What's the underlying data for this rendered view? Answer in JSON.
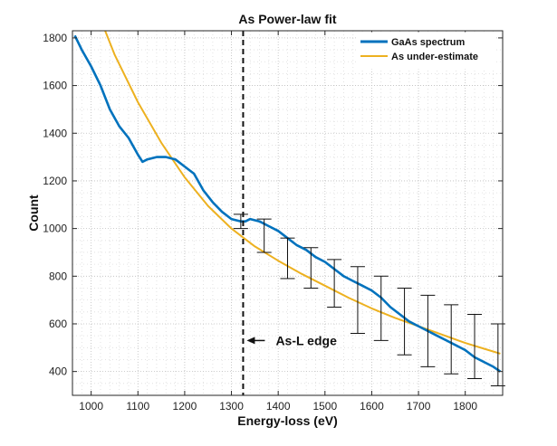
{
  "chart_data": {
    "type": "line",
    "title": "As Power-law fit",
    "xlabel": "Energy-loss (eV)",
    "ylabel": "Count",
    "xlim": [
      960,
      1880
    ],
    "ylim": [
      300,
      1830
    ],
    "xticks": [
      1000,
      1100,
      1200,
      1300,
      1400,
      1500,
      1600,
      1700,
      1800
    ],
    "yticks": [
      400,
      600,
      800,
      1000,
      1200,
      1400,
      1600,
      1800
    ],
    "grid": "dotted",
    "legend_position": "top-right",
    "series": [
      {
        "name": "GaAs spectrum",
        "color": "#0072BD",
        "x": [
          965,
          980,
          1000,
          1020,
          1040,
          1060,
          1080,
          1100,
          1110,
          1120,
          1140,
          1160,
          1180,
          1200,
          1220,
          1240,
          1260,
          1280,
          1300,
          1320,
          1330,
          1340,
          1360,
          1380,
          1400,
          1420,
          1440,
          1460,
          1480,
          1500,
          1520,
          1540,
          1560,
          1580,
          1600,
          1620,
          1640,
          1660,
          1680,
          1700,
          1720,
          1740,
          1760,
          1780,
          1800,
          1820,
          1840,
          1860,
          1875
        ],
        "y": [
          1810,
          1750,
          1680,
          1600,
          1500,
          1430,
          1380,
          1310,
          1280,
          1290,
          1300,
          1300,
          1290,
          1260,
          1230,
          1160,
          1110,
          1070,
          1040,
          1030,
          1030,
          1040,
          1030,
          1010,
          990,
          960,
          930,
          910,
          880,
          860,
          830,
          800,
          780,
          760,
          740,
          710,
          670,
          640,
          610,
          590,
          570,
          550,
          530,
          510,
          490,
          460,
          440,
          420,
          400
        ]
      },
      {
        "name": "As under-estimate",
        "color": "#EDB120",
        "x": [
          1030,
          1050,
          1100,
          1150,
          1200,
          1250,
          1300,
          1350,
          1400,
          1450,
          1500,
          1550,
          1600,
          1650,
          1700,
          1750,
          1800,
          1850,
          1875
        ],
        "y": [
          1830,
          1730,
          1530,
          1360,
          1215,
          1095,
          1000,
          925,
          865,
          810,
          760,
          710,
          665,
          625,
          590,
          555,
          520,
          490,
          475
        ]
      }
    ],
    "error_bars": {
      "x": [
        1320,
        1370,
        1420,
        1470,
        1520,
        1570,
        1620,
        1670,
        1720,
        1770,
        1820,
        1870
      ],
      "y": [
        1030,
        970,
        870,
        860,
        760,
        700,
        660,
        590,
        570,
        530,
        490,
        470
      ],
      "lower": [
        1000,
        900,
        790,
        750,
        670,
        560,
        530,
        470,
        420,
        390,
        370,
        340
      ],
      "upper": [
        1060,
        1040,
        960,
        920,
        870,
        840,
        800,
        750,
        720,
        680,
        640,
        600
      ]
    },
    "vline": {
      "x": 1325,
      "style": "dashed"
    },
    "annotation": {
      "text": "As-L edge",
      "arrow_to": [
        1325,
        530
      ]
    }
  }
}
